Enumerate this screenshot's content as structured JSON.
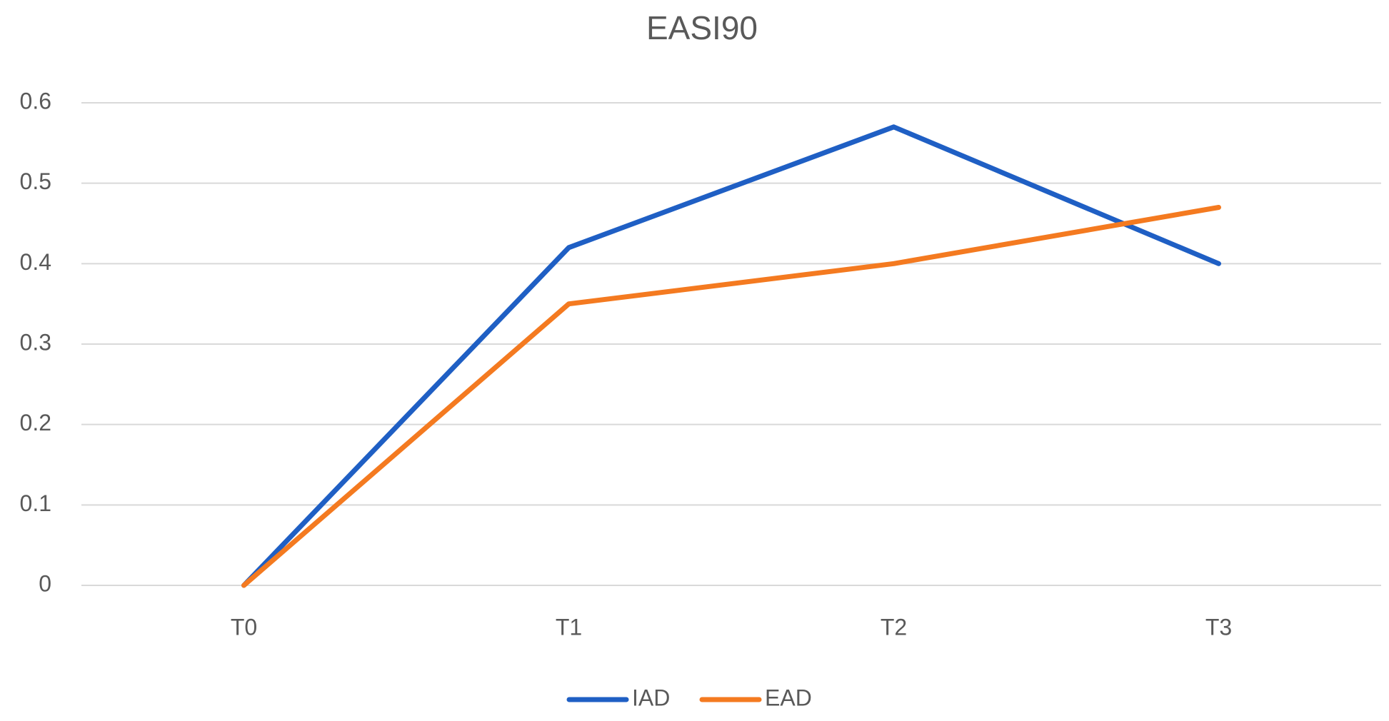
{
  "chart_data": {
    "type": "line",
    "title": "EASI90",
    "categories": [
      "T0",
      "T1",
      "T2",
      "T3"
    ],
    "series": [
      {
        "name": "IAD",
        "color": "#1f5fc4",
        "values": [
          0,
          0.42,
          0.57,
          0.4
        ]
      },
      {
        "name": "EAD",
        "color": "#f47a20",
        "values": [
          0,
          0.35,
          0.4,
          0.47
        ]
      }
    ],
    "ylim": [
      0,
      0.6
    ],
    "yticks": [
      0,
      0.1,
      0.2,
      0.3,
      0.4,
      0.5,
      0.6
    ],
    "grid": true,
    "legend": "bottom"
  }
}
